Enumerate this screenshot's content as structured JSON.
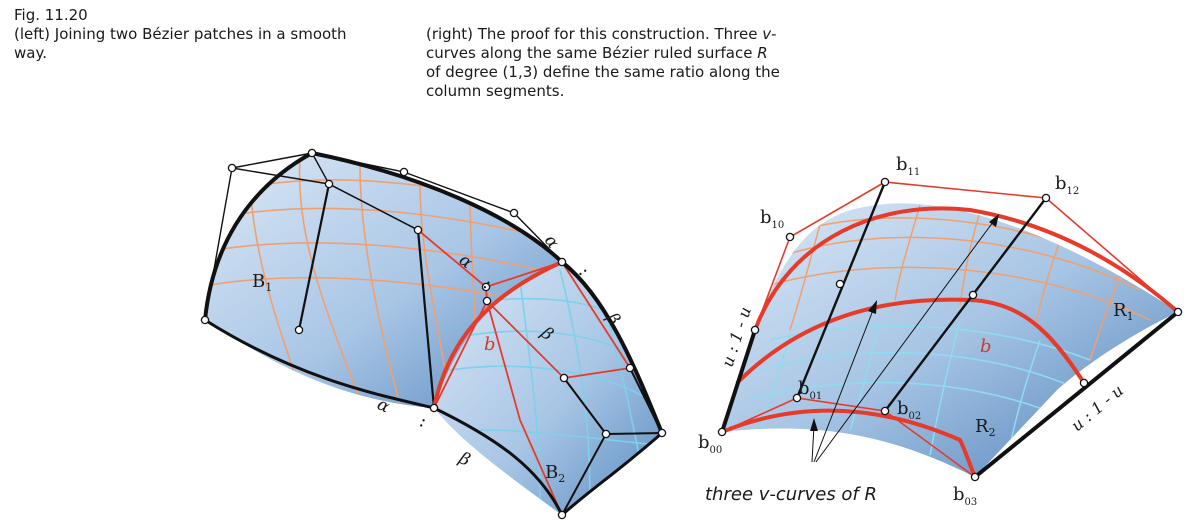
{
  "caption": {
    "fig_number": "Fig. 11.20",
    "left": "(left) Joining two Bézier patches in a smooth way.",
    "right_pre": "(right) The proof for this construction. Three ",
    "right_v": "v",
    "right_mid": "-curves along the same Bézier ruled surface ",
    "right_R": "R",
    "right_post": " of degree (1,3) define the same ratio along the column segments."
  },
  "left_figure": {
    "patch1_label": "B",
    "patch1_sub": "1",
    "patch2_label": "B",
    "patch2_sub": "2",
    "curve_label": "b",
    "alpha": "α",
    "beta": "β",
    "colon": ":"
  },
  "right_figure": {
    "points": [
      {
        "name": "b",
        "sub": "00"
      },
      {
        "name": "b",
        "sub": "01"
      },
      {
        "name": "b",
        "sub": "02"
      },
      {
        "name": "b",
        "sub": "03"
      },
      {
        "name": "b",
        "sub": "10"
      },
      {
        "name": "b",
        "sub": "11"
      },
      {
        "name": "b",
        "sub": "12"
      }
    ],
    "surface1_label": "R",
    "surface1_sub": "1",
    "surface2_label": "R",
    "surface2_sub": "2",
    "curve_label": "b",
    "ratio_left": "u : 1 - u",
    "ratio_right": "u : 1 - u",
    "annotation": "three v-curves of R"
  },
  "colors": {
    "surface_light": "#cfe0f0",
    "surface_dark": "#5f8fc2",
    "grid_orange": "#f0a070",
    "grid_cyan": "#7fd0ea",
    "red": "#e63a2a",
    "black": "#111111"
  }
}
